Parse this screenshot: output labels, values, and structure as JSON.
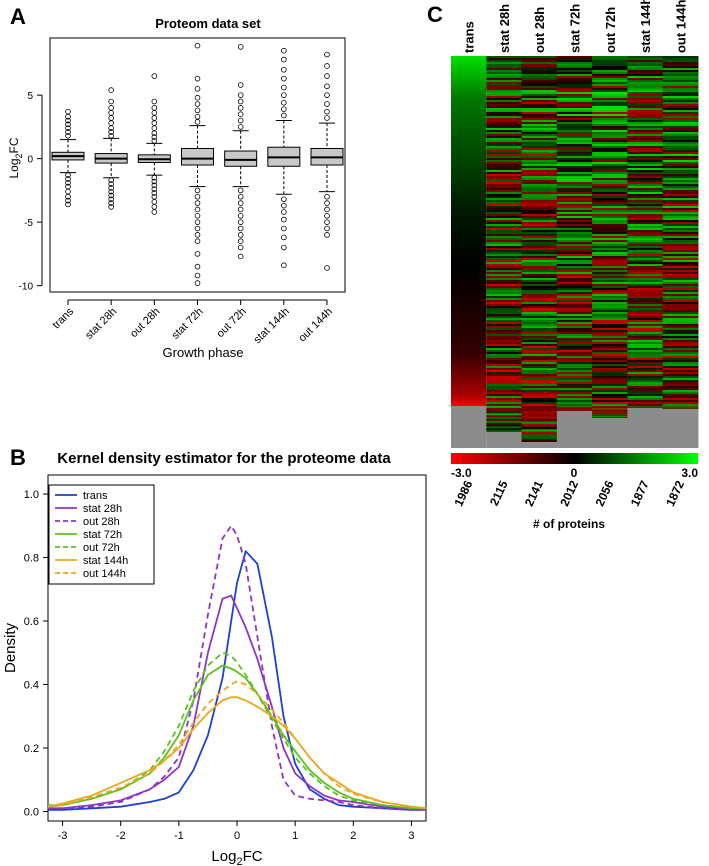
{
  "panel_labels": [
    "A",
    "B",
    "C"
  ],
  "colors": {
    "box_fill": "#c8c8c8",
    "trans": "#1f3fd0",
    "stat28": "#8e35c8",
    "out28": "#8e35c8",
    "stat72": "#5cc020",
    "out72": "#5cc020",
    "stat144": "#e8a820",
    "out144": "#e8a820",
    "heat_low": "#ff0000",
    "heat_mid": "#000000",
    "heat_high": "#00ff00",
    "missing": "#8c8c8c"
  },
  "chart_data": [
    {
      "panel": "A",
      "type": "box",
      "title": "Proteom data set",
      "xlabel": "Growth phase",
      "ylabel_main": "Log",
      "ylabel_sub": "2",
      "ylabel_tail": "FC",
      "ylim": [
        -10.5,
        9.5
      ],
      "yticks": [
        -10,
        -5,
        0,
        5
      ],
      "yticklabels": [
        "-10",
        "-5",
        "0",
        "5"
      ],
      "categories": [
        "trans",
        "stat 28h",
        "out 28h",
        "stat 72h",
        "out 72h",
        "stat 144h",
        "out 144h"
      ],
      "boxes": [
        {
          "q1": -0.1,
          "median": 0.2,
          "q3": 0.5,
          "whisker_low": -1.1,
          "whisker_high": 1.5,
          "outliers_low": [
            -1.3,
            -1.6,
            -1.9,
            -2.2,
            -2.6,
            -3.0,
            -3.3,
            -3.6
          ],
          "outliers_high": [
            1.8,
            2.1,
            2.4,
            2.7,
            3.0,
            3.3,
            3.7
          ]
        },
        {
          "q1": -0.35,
          "median": 0.0,
          "q3": 0.4,
          "whisker_low": -1.5,
          "whisker_high": 1.6,
          "outliers_low": [
            -1.7,
            -2.0,
            -2.3,
            -2.6,
            -2.9,
            -3.2,
            -3.5,
            -3.8
          ],
          "outliers_high": [
            1.8,
            2.1,
            2.4,
            2.8,
            3.2,
            3.6,
            4.0,
            4.5,
            5.4
          ]
        },
        {
          "q1": -0.3,
          "median": -0.05,
          "q3": 0.3,
          "whisker_low": -1.3,
          "whisker_high": 1.2,
          "outliers_low": [
            -1.5,
            -1.8,
            -2.1,
            -2.4,
            -2.7,
            -3.0,
            -3.4,
            -3.8,
            -4.2
          ],
          "outliers_high": [
            1.4,
            1.7,
            2.0,
            2.4,
            2.8,
            3.2,
            3.6,
            4.0,
            4.5,
            6.5
          ]
        },
        {
          "q1": -0.5,
          "median": 0.0,
          "q3": 0.8,
          "whisker_low": -2.2,
          "whisker_high": 2.6,
          "outliers_low": [
            -2.5,
            -3.0,
            -3.5,
            -4.0,
            -4.5,
            -5.0,
            -5.5,
            -6.0,
            -6.5,
            -7.5,
            -8.5,
            -9.2,
            -9.8
          ],
          "outliers_high": [
            2.9,
            3.3,
            3.8,
            4.3,
            4.8,
            5.5,
            6.3,
            8.9
          ]
        },
        {
          "q1": -0.6,
          "median": -0.1,
          "q3": 0.6,
          "whisker_low": -2.2,
          "whisker_high": 2.2,
          "outliers_low": [
            -2.5,
            -3.0,
            -3.5,
            -4.0,
            -4.5,
            -5.0,
            -5.5,
            -6.0,
            -6.5,
            -7.0,
            -7.7
          ],
          "outliers_high": [
            2.5,
            3.0,
            3.5,
            4.0,
            4.5,
            5.0,
            5.8,
            8.8
          ]
        },
        {
          "q1": -0.6,
          "median": 0.1,
          "q3": 0.9,
          "whisker_low": -2.8,
          "whisker_high": 3.0,
          "outliers_low": [
            -3.2,
            -3.7,
            -4.2,
            -4.8,
            -5.5,
            -6.2,
            -7.0,
            -8.4
          ],
          "outliers_high": [
            3.4,
            3.9,
            4.4,
            5.0,
            5.6,
            6.3,
            7.0,
            7.8,
            8.5
          ]
        },
        {
          "q1": -0.5,
          "median": 0.1,
          "q3": 0.8,
          "whisker_low": -2.6,
          "whisker_high": 2.8,
          "outliers_low": [
            -3.0,
            -3.5,
            -4.0,
            -4.5,
            -5.0,
            -5.5,
            -6.0,
            -8.6
          ],
          "outliers_high": [
            3.2,
            3.7,
            4.3,
            5.0,
            5.7,
            6.5,
            7.3,
            8.2
          ]
        }
      ]
    },
    {
      "panel": "B",
      "type": "line",
      "title": "Kernel density estimator for the proteome data",
      "xlabel_main": "Log",
      "xlabel_sub": "2",
      "xlabel_tail": "FC",
      "ylabel": "Density",
      "xlim": [
        -3.25,
        3.25
      ],
      "ylim": [
        -0.03,
        1.06
      ],
      "xticks": [
        -3,
        -2,
        -1,
        0,
        1,
        2,
        3
      ],
      "xticklabels": [
        "-3",
        "-2",
        "-1",
        "0",
        "1",
        "2",
        "3"
      ],
      "yticks": [
        0.0,
        0.2,
        0.4,
        0.6,
        0.8,
        1.0
      ],
      "yticklabels": [
        "0.0",
        "0.2",
        "0.4",
        "0.6",
        "0.8",
        "1.0"
      ],
      "legend_position": "top-left",
      "x": [
        -3.25,
        -3.0,
        -2.5,
        -2.0,
        -1.5,
        -1.25,
        -1.0,
        -0.75,
        -0.5,
        -0.25,
        -0.1,
        0.0,
        0.15,
        0.35,
        0.6,
        0.8,
        1.0,
        1.25,
        1.5,
        1.75,
        2.0,
        2.5,
        3.0,
        3.25
      ],
      "series": [
        {
          "name": "trans",
          "style": "solid",
          "color_key": "trans",
          "values": [
            0.005,
            0.005,
            0.01,
            0.015,
            0.03,
            0.04,
            0.06,
            0.13,
            0.24,
            0.42,
            0.6,
            0.72,
            0.82,
            0.78,
            0.55,
            0.3,
            0.15,
            0.07,
            0.04,
            0.02,
            0.015,
            0.01,
            0.005,
            0.005
          ]
        },
        {
          "name": "stat 28h",
          "style": "solid",
          "color_key": "stat28",
          "values": [
            0.01,
            0.01,
            0.02,
            0.035,
            0.07,
            0.1,
            0.14,
            0.27,
            0.5,
            0.67,
            0.68,
            0.64,
            0.58,
            0.48,
            0.33,
            0.2,
            0.12,
            0.08,
            0.05,
            0.035,
            0.03,
            0.015,
            0.01,
            0.01
          ]
        },
        {
          "name": "out 28h",
          "style": "dashed",
          "color_key": "out28",
          "values": [
            0.01,
            0.01,
            0.015,
            0.03,
            0.07,
            0.11,
            0.17,
            0.35,
            0.62,
            0.86,
            0.9,
            0.87,
            0.78,
            0.55,
            0.27,
            0.1,
            0.05,
            0.04,
            0.035,
            0.03,
            0.02,
            0.01,
            0.005,
            0.005
          ]
        },
        {
          "name": "stat 72h",
          "style": "solid",
          "color_key": "stat72",
          "values": [
            0.015,
            0.02,
            0.04,
            0.07,
            0.12,
            0.17,
            0.24,
            0.35,
            0.43,
            0.46,
            0.45,
            0.44,
            0.42,
            0.37,
            0.3,
            0.24,
            0.19,
            0.13,
            0.09,
            0.06,
            0.04,
            0.02,
            0.01,
            0.01
          ]
        },
        {
          "name": "out 72h",
          "style": "dashed",
          "color_key": "out72",
          "values": [
            0.02,
            0.02,
            0.04,
            0.07,
            0.13,
            0.19,
            0.27,
            0.38,
            0.46,
            0.5,
            0.49,
            0.47,
            0.43,
            0.37,
            0.29,
            0.23,
            0.17,
            0.12,
            0.08,
            0.05,
            0.035,
            0.02,
            0.01,
            0.01
          ]
        },
        {
          "name": "stat 144h",
          "style": "solid",
          "color_key": "stat144",
          "values": [
            0.015,
            0.025,
            0.05,
            0.09,
            0.13,
            0.16,
            0.2,
            0.26,
            0.31,
            0.35,
            0.36,
            0.36,
            0.35,
            0.33,
            0.3,
            0.27,
            0.23,
            0.17,
            0.12,
            0.09,
            0.06,
            0.03,
            0.015,
            0.01
          ]
        },
        {
          "name": "out 144h",
          "style": "dashed",
          "color_key": "out144",
          "values": [
            0.015,
            0.02,
            0.045,
            0.075,
            0.12,
            0.16,
            0.21,
            0.28,
            0.34,
            0.38,
            0.4,
            0.41,
            0.4,
            0.37,
            0.32,
            0.28,
            0.23,
            0.17,
            0.12,
            0.08,
            0.055,
            0.03,
            0.015,
            0.01
          ]
        }
      ]
    },
    {
      "panel": "C",
      "type": "heatmap",
      "columns": [
        "trans",
        "stat 28h",
        "out 28h",
        "stat 72h",
        "out 72h",
        "stat 144h",
        "out 144h"
      ],
      "protein_counts": [
        "1986",
        "2115",
        "2141",
        "2012",
        "2056",
        "1877",
        "1872"
      ],
      "counts_label": "# of proteins",
      "colorbar_min_label": "-3.0",
      "colorbar_mid_label": "0",
      "colorbar_max_label": "3.0",
      "colorbar_range": [
        -3.0,
        3.0
      ],
      "missing_color_key": "missing"
    }
  ]
}
